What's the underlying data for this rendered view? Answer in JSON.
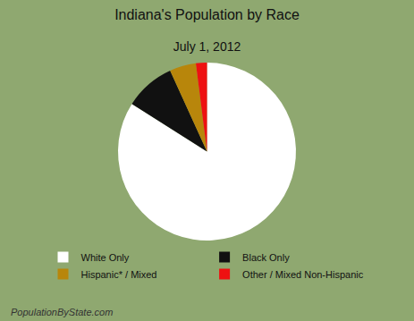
{
  "chart_data": {
    "type": "pie",
    "title": "Indiana's Population by Race",
    "subtitle": "July 1, 2012",
    "categories": [
      "White Only",
      "Black Only",
      "Hispanic* / Mixed",
      "Other / Mixed Non-Hispanic"
    ],
    "values": [
      84.0,
      9.2,
      4.8,
      2.0
    ],
    "colors": [
      "#ffffff",
      "#111111",
      "#b8860b",
      "#ee1111"
    ],
    "legend": "bottom",
    "annotations": [
      "PopulationByState.com"
    ]
  }
}
